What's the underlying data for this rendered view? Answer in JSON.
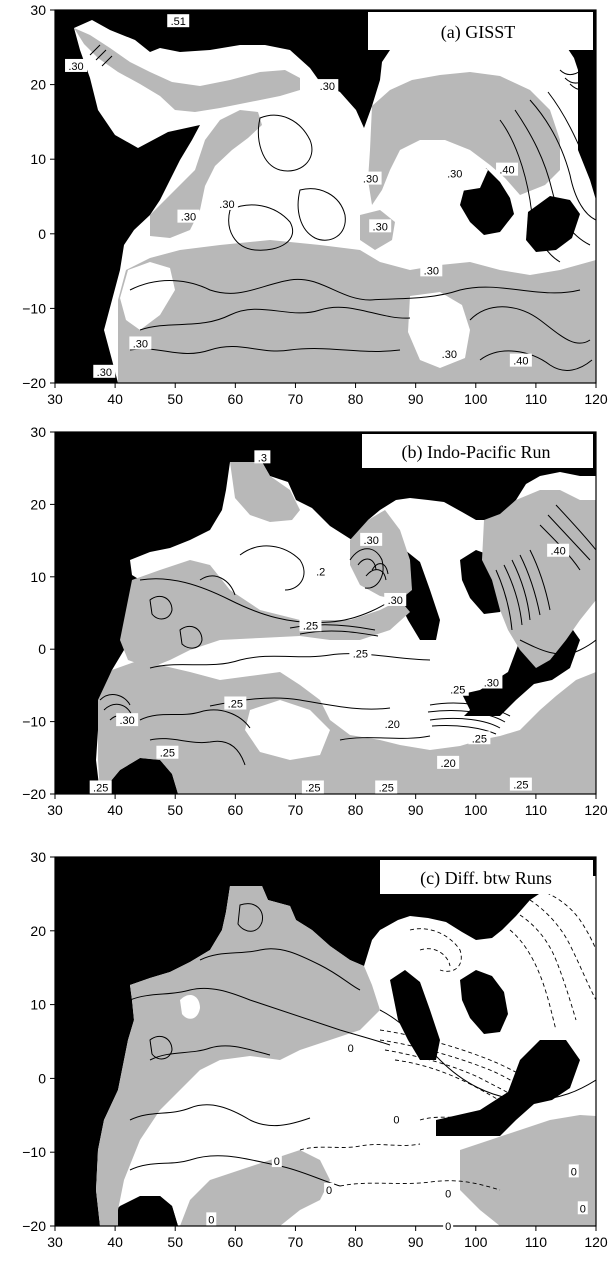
{
  "chart_data": [
    {
      "type": "heatmap",
      "title": "(a) GISST",
      "xlim": [
        30,
        120
      ],
      "ylim": [
        -20,
        30
      ],
      "xticks": [
        "30",
        "40",
        "50",
        "60",
        "70",
        "80",
        "90",
        "100",
        "110",
        "120"
      ],
      "yticks": [
        "30",
        "20",
        "10",
        "0",
        "−10",
        "−20"
      ],
      "grid": false,
      "legend": "none",
      "contour_labels": [
        {
          "text": ".30",
          "x": 33.5,
          "y": 22.5
        },
        {
          "text": ".51",
          "x": 50.5,
          "y": 28.5
        },
        {
          "text": ".30",
          "x": 75.3,
          "y": 19.8
        },
        {
          "text": ".30",
          "x": 82.5,
          "y": 7.4
        },
        {
          "text": ".30",
          "x": 96.5,
          "y": 8.1
        },
        {
          "text": ".40",
          "x": 105.2,
          "y": 8.6
        },
        {
          "text": ".30",
          "x": 52.2,
          "y": 2.3
        },
        {
          "text": ".30",
          "x": 58.6,
          "y": 4.0
        },
        {
          "text": ".30",
          "x": 84.1,
          "y": 1.0
        },
        {
          "text": ".30",
          "x": 92.6,
          "y": -4.9
        },
        {
          "text": ".30",
          "x": 44.2,
          "y": -14.7
        },
        {
          "text": ".30",
          "x": 95.6,
          "y": -16.1
        },
        {
          "text": ".40",
          "x": 107.5,
          "y": -17.0
        },
        {
          "text": ".30",
          "x": 38.2,
          "y": -18.5
        }
      ]
    },
    {
      "type": "heatmap",
      "title": "(b) Indo-Pacific Run",
      "xlim": [
        30,
        120
      ],
      "ylim": [
        -20,
        30
      ],
      "xticks": [
        "30",
        "40",
        "50",
        "60",
        "70",
        "80",
        "90",
        "100",
        "110",
        "120"
      ],
      "yticks": [
        "30",
        "20",
        "10",
        "0",
        "−10",
        "−20"
      ],
      "grid": false,
      "legend": "none",
      "contour_labels": [
        {
          "text": ".3",
          "x": 64.5,
          "y": 26.5
        },
        {
          "text": ".30",
          "x": 82.6,
          "y": 15.1
        },
        {
          "text": ".40",
          "x": 113.7,
          "y": 13.6
        },
        {
          "text": ".2",
          "x": 74.2,
          "y": 10.7
        },
        {
          "text": ".30",
          "x": 86.6,
          "y": 6.8
        },
        {
          "text": ".25",
          "x": 72.5,
          "y": 3.3
        },
        {
          "text": ".25",
          "x": 80.8,
          "y": -0.6
        },
        {
          "text": ".30",
          "x": 102.6,
          "y": -4.6
        },
        {
          "text": ".25",
          "x": 97.0,
          "y": -5.6
        },
        {
          "text": ".25",
          "x": 60.0,
          "y": -7.5
        },
        {
          "text": ".30",
          "x": 42.0,
          "y": -9.8
        },
        {
          "text": ".20",
          "x": 86.1,
          "y": -10.3
        },
        {
          "text": ".25",
          "x": 100.6,
          "y": -12.3
        },
        {
          "text": ".25",
          "x": 48.7,
          "y": -14.3
        },
        {
          "text": ".20",
          "x": 95.4,
          "y": -15.7
        },
        {
          "text": ".25",
          "x": 37.6,
          "y": -19.1
        },
        {
          "text": ".25",
          "x": 72.9,
          "y": -19.1
        },
        {
          "text": ".25",
          "x": 85.1,
          "y": -19.1
        },
        {
          "text": ".25",
          "x": 107.5,
          "y": -18.7
        }
      ]
    },
    {
      "type": "heatmap",
      "title": "(c) Diff. btw Runs",
      "xlim": [
        30,
        120
      ],
      "ylim": [
        -20,
        30
      ],
      "xticks": [
        "30",
        "40",
        "50",
        "60",
        "70",
        "80",
        "90",
        "100",
        "110",
        "120"
      ],
      "yticks": [
        "30",
        "20",
        "10",
        "0",
        "−10",
        "−20"
      ],
      "grid": false,
      "legend": "none",
      "contour_labels": [
        {
          "text": "0",
          "x": 79.2,
          "y": 4.1
        },
        {
          "text": "0",
          "x": 86.8,
          "y": -5.6
        },
        {
          "text": "0",
          "x": 66.9,
          "y": -11.2
        },
        {
          "text": "0",
          "x": 75.6,
          "y": -15.1
        },
        {
          "text": "0",
          "x": 95.4,
          "y": -15.6
        },
        {
          "text": "0",
          "x": 116.3,
          "y": -12.6
        },
        {
          "text": "0",
          "x": 56.0,
          "y": -19.1
        },
        {
          "text": "0",
          "x": 95.4,
          "y": -20.0
        },
        {
          "text": "0",
          "x": 117.8,
          "y": -17.6
        }
      ]
    }
  ]
}
